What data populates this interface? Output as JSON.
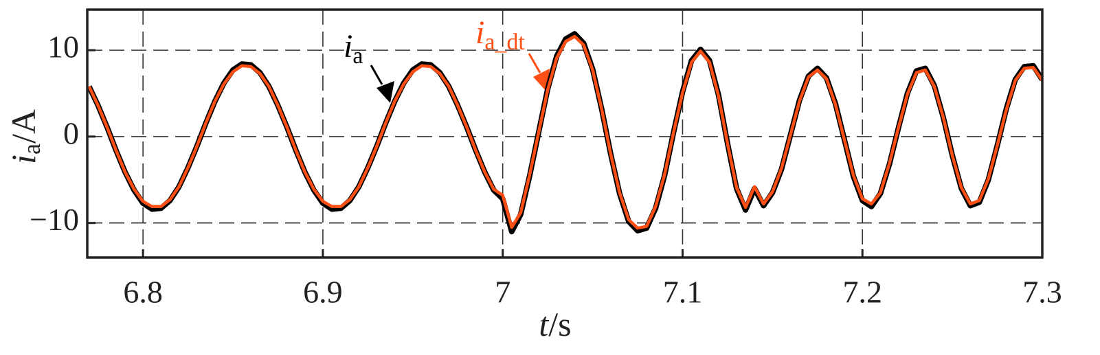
{
  "chart_data": {
    "type": "line",
    "xlabel": {
      "symbol": "t",
      "unit": "/s"
    },
    "ylabel": {
      "symbol": "i",
      "subscript": "a",
      "unit": "/A"
    },
    "x": [
      6.77,
      6.775,
      6.78,
      6.785,
      6.79,
      6.795,
      6.8,
      6.805,
      6.81,
      6.815,
      6.82,
      6.825,
      6.83,
      6.835,
      6.84,
      6.845,
      6.85,
      6.855,
      6.86,
      6.865,
      6.87,
      6.875,
      6.88,
      6.885,
      6.89,
      6.895,
      6.9,
      6.905,
      6.91,
      6.915,
      6.92,
      6.925,
      6.93,
      6.935,
      6.94,
      6.945,
      6.95,
      6.955,
      6.96,
      6.965,
      6.97,
      6.975,
      6.98,
      6.985,
      6.99,
      6.995,
      7.0,
      7.005,
      7.01,
      7.015,
      7.02,
      7.025,
      7.03,
      7.035,
      7.04,
      7.045,
      7.05,
      7.055,
      7.06,
      7.065,
      7.07,
      7.075,
      7.08,
      7.085,
      7.09,
      7.095,
      7.1,
      7.105,
      7.11,
      7.115,
      7.12,
      7.125,
      7.13,
      7.135,
      7.14,
      7.145,
      7.15,
      7.155,
      7.16,
      7.165,
      7.17,
      7.175,
      7.18,
      7.185,
      7.19,
      7.195,
      7.2,
      7.205,
      7.21,
      7.215,
      7.22,
      7.225,
      7.23,
      7.235,
      7.24,
      7.245,
      7.25,
      7.255,
      7.26,
      7.265,
      7.27,
      7.275,
      7.28,
      7.285,
      7.29,
      7.295,
      7.3
    ],
    "series": [
      {
        "name": "i",
        "subscript": "a",
        "color": "#000000",
        "values": [
          5.8,
          3.6,
          1.1,
          -1.6,
          -4.1,
          -6.2,
          -7.7,
          -8.4,
          -8.3,
          -7.4,
          -5.8,
          -3.6,
          -1.1,
          1.6,
          4.1,
          6.2,
          7.7,
          8.4,
          8.3,
          7.4,
          5.8,
          3.6,
          1.1,
          -1.6,
          -4.1,
          -6.2,
          -7.7,
          -8.4,
          -8.3,
          -7.4,
          -5.8,
          -3.6,
          -1.1,
          1.6,
          4.1,
          6.2,
          7.7,
          8.4,
          8.3,
          7.4,
          5.8,
          3.6,
          1.1,
          -1.6,
          -4.1,
          -6.2,
          -7.2,
          -11.0,
          -9.0,
          -4.5,
          0.5,
          5.5,
          9.3,
          11.3,
          11.9,
          10.8,
          7.8,
          3.2,
          -2.0,
          -6.6,
          -9.8,
          -10.9,
          -10.6,
          -8.3,
          -4.5,
          0.5,
          5.2,
          8.8,
          10.1,
          8.8,
          4.8,
          -0.8,
          -6.0,
          -8.5,
          -6.0,
          -8.0,
          -6.5,
          -3.8,
          0.2,
          4.2,
          7.0,
          7.9,
          6.8,
          3.8,
          -0.4,
          -4.6,
          -7.4,
          -8.1,
          -6.6,
          -3.2,
          1.0,
          5.0,
          7.6,
          7.9,
          5.9,
          2.2,
          -2.2,
          -6.0,
          -8.0,
          -7.6,
          -5.0,
          -1.0,
          3.2,
          6.6,
          8.1,
          8.2,
          6.6
        ]
      },
      {
        "name": "i",
        "subscript": "a_dt",
        "color": "#ff4f14",
        "values": [
          5.8,
          3.6,
          1.1,
          -1.6,
          -4.1,
          -6.1,
          -7.5,
          -8.1,
          -8.1,
          -7.3,
          -5.8,
          -3.6,
          -1.1,
          1.6,
          4.1,
          6.1,
          7.5,
          8.2,
          8.1,
          7.3,
          5.8,
          3.6,
          1.1,
          -1.6,
          -4.1,
          -6.1,
          -7.5,
          -8.1,
          -8.1,
          -7.3,
          -5.8,
          -3.6,
          -1.1,
          1.6,
          4.1,
          6.1,
          7.5,
          8.2,
          8.1,
          7.3,
          5.8,
          3.6,
          1.1,
          -1.6,
          -4.1,
          -6.1,
          -6.8,
          -10.5,
          -8.8,
          -4.4,
          0.5,
          5.4,
          9.1,
          11.0,
          11.6,
          10.6,
          7.7,
          3.2,
          -2.0,
          -6.5,
          -9.6,
          -10.6,
          -10.4,
          -8.1,
          -4.4,
          0.5,
          5.1,
          8.6,
          9.9,
          8.6,
          4.7,
          -0.8,
          -5.9,
          -8.2,
          -5.8,
          -7.8,
          -6.4,
          -3.7,
          0.2,
          4.1,
          6.9,
          7.7,
          6.7,
          3.7,
          -0.4,
          -4.5,
          -7.2,
          -7.8,
          -6.5,
          -3.1,
          1.0,
          4.9,
          7.4,
          7.7,
          5.8,
          2.2,
          -2.2,
          -5.9,
          -7.8,
          -7.4,
          -4.9,
          -1.0,
          3.1,
          6.5,
          7.9,
          8.0,
          6.5
        ]
      }
    ],
    "xlim": [
      6.769,
      7.3
    ],
    "xticks": [
      6.8,
      6.9,
      7,
      7.1,
      7.2,
      7.3
    ],
    "ylim": [
      -14,
      14.7
    ],
    "yticks": [
      {
        "value": -10,
        "label": "−10"
      },
      0,
      10
    ],
    "grid": true
  }
}
